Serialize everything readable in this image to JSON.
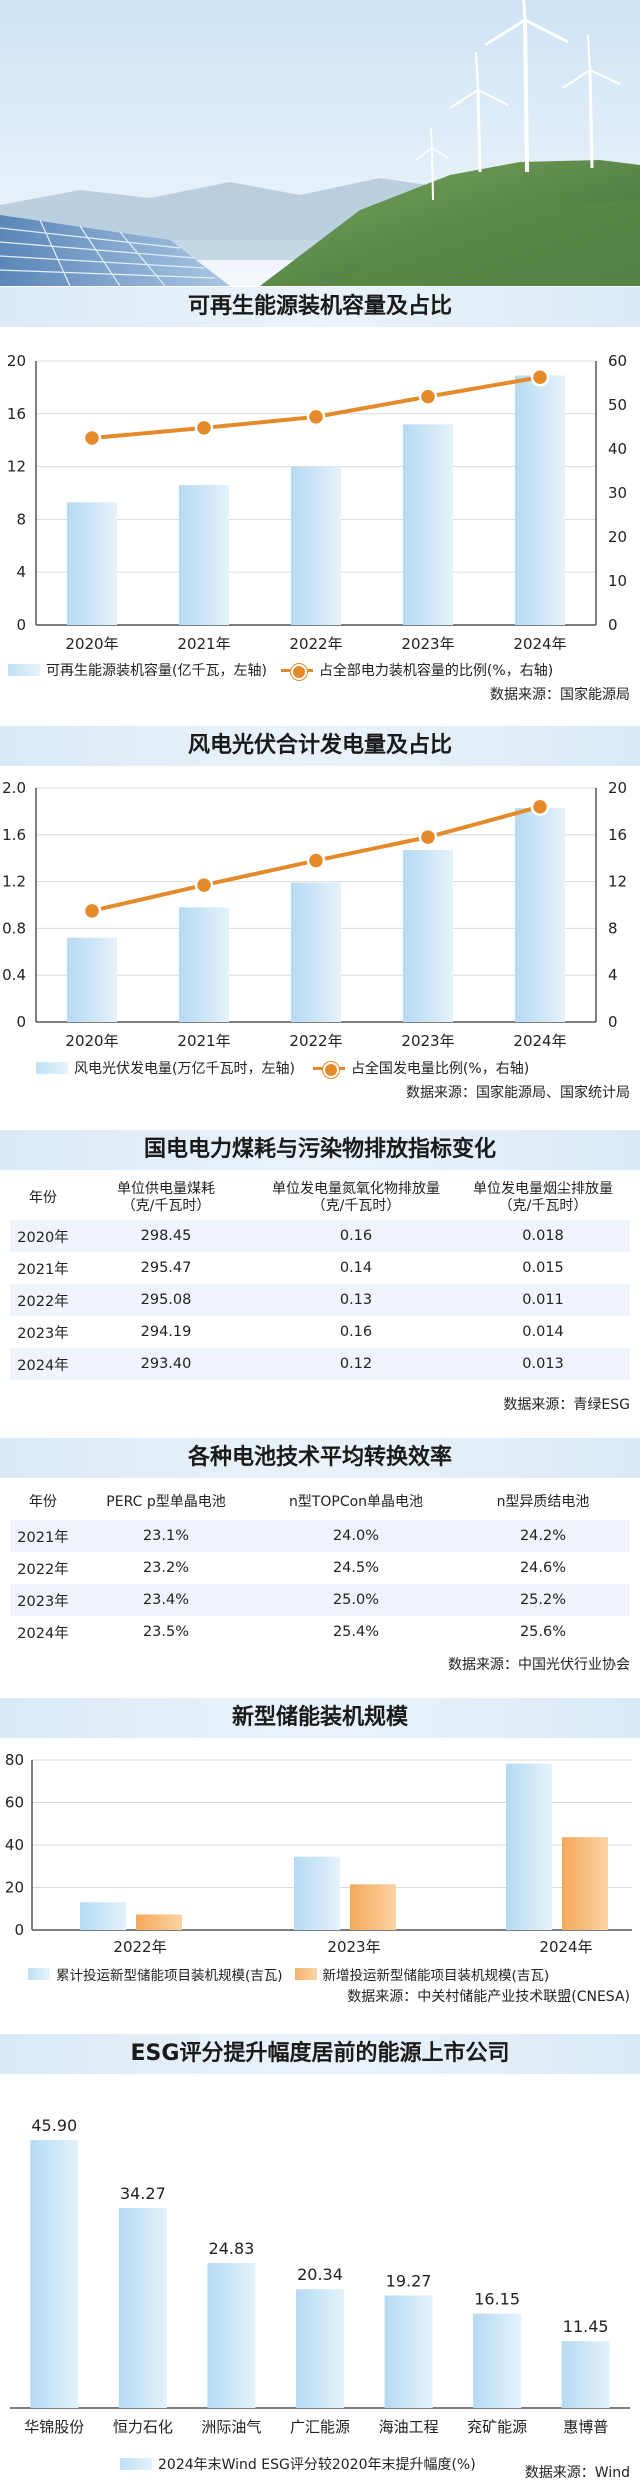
{
  "charts": {
    "c1": {
      "title": "可再生能源装机容量及占比",
      "legend_bar": "可再生能源装机容量(亿千瓦，左轴)",
      "legend_line": "占全部电力装机容量的比例(%，右轴)",
      "source": "数据来源：国家能源局",
      "left_ticks": [
        "0",
        "4",
        "8",
        "12",
        "16",
        "20"
      ],
      "right_ticks": [
        "0",
        "10",
        "20",
        "30",
        "40",
        "50",
        "60"
      ]
    },
    "c2": {
      "title": "风电光伏合计发电量及占比",
      "legend_bar": "风电光伏发电量(万亿千瓦时，左轴)",
      "legend_line": "占全国发电量比例(%，右轴)",
      "source": "数据来源：国家能源局、国家统计局",
      "left_ticks": [
        "0",
        "0.4",
        "0.8",
        "1.2",
        "1.6",
        "2.0"
      ],
      "right_ticks": [
        "0",
        "4",
        "8",
        "12",
        "16",
        "20"
      ]
    },
    "t1": {
      "title": "国电电力煤耗与污染物排放指标变化",
      "source": "数据来源：青绿ESG"
    },
    "t2": {
      "title": "各种电池技术平均转换效率",
      "source": "数据来源：中国光伏行业协会"
    },
    "c3": {
      "title": "新型储能装机规模",
      "legend_a": "累计投运新型储能项目装机规模(吉瓦)",
      "legend_b": "新增投运新型储能项目装机规模(吉瓦)",
      "source": "数据来源：中关村储能产业技术联盟(CNESA)",
      "ticks": [
        "0",
        "20",
        "40",
        "60",
        "80"
      ]
    },
    "c4": {
      "title": "ESG评分提升幅度居前的能源上市公司",
      "legend": "2024年末Wind ESG评分较2020年末提升幅度(%)",
      "source": "数据来源：Wind"
    }
  },
  "chart_data": [
    {
      "type": "bar",
      "title": "可再生能源装机容量及占比",
      "categories": [
        "2020年",
        "2021年",
        "2022年",
        "2023年",
        "2024年"
      ],
      "series": [
        {
          "name": "可再生能源装机容量(亿千瓦，左轴)",
          "type": "bar",
          "axis": "left",
          "values": [
            9.3,
            10.6,
            12.0,
            15.2,
            18.9
          ]
        },
        {
          "name": "占全部电力装机容量的比例(%，右轴)",
          "type": "line",
          "axis": "right",
          "values": [
            42.5,
            44.8,
            47.3,
            51.9,
            56.3
          ]
        }
      ],
      "ylim_left": [
        0,
        20
      ],
      "ylim_right": [
        0,
        60
      ]
    },
    {
      "type": "bar",
      "title": "风电光伏合计发电量及占比",
      "categories": [
        "2020年",
        "2021年",
        "2022年",
        "2023年",
        "2024年"
      ],
      "series": [
        {
          "name": "风电光伏发电量(万亿千瓦时，左轴)",
          "type": "bar",
          "axis": "left",
          "values": [
            0.72,
            0.98,
            1.19,
            1.47,
            1.83
          ]
        },
        {
          "name": "占全国发电量比例(%，右轴)",
          "type": "line",
          "axis": "right",
          "values": [
            9.5,
            11.7,
            13.8,
            15.8,
            18.4
          ]
        }
      ],
      "ylim_left": [
        0,
        2.0
      ],
      "ylim_right": [
        0,
        20
      ]
    },
    {
      "type": "table",
      "title": "国电电力煤耗与污染物排放指标变化",
      "columns": [
        "年份",
        "单位供电量煤耗\n（克/千瓦时）",
        "单位发电量氮氧化物排放量\n（克/千瓦时）",
        "单位发电量烟尘排放量\n（克/千瓦时）"
      ],
      "rows": [
        [
          "2020年",
          "298.45",
          "0.16",
          "0.018"
        ],
        [
          "2021年",
          "295.47",
          "0.14",
          "0.015"
        ],
        [
          "2022年",
          "295.08",
          "0.13",
          "0.011"
        ],
        [
          "2023年",
          "294.19",
          "0.16",
          "0.014"
        ],
        [
          "2024年",
          "293.40",
          "0.12",
          "0.013"
        ]
      ]
    },
    {
      "type": "table",
      "title": "各种电池技术平均转换效率",
      "columns": [
        "年份",
        "PERC p型单晶电池",
        "n型TOPCon单晶电池",
        "n型异质结电池"
      ],
      "rows": [
        [
          "2021年",
          "23.1%",
          "24.0%",
          "24.2%"
        ],
        [
          "2022年",
          "23.2%",
          "24.5%",
          "24.6%"
        ],
        [
          "2023年",
          "23.4%",
          "25.0%",
          "25.2%"
        ],
        [
          "2024年",
          "23.5%",
          "25.4%",
          "25.6%"
        ]
      ]
    },
    {
      "type": "bar",
      "title": "新型储能装机规模",
      "categories": [
        "2022年",
        "2023年",
        "2024年"
      ],
      "series": [
        {
          "name": "累计投运新型储能项目装机规模(吉瓦)",
          "values": [
            13.1,
            34.5,
            78.3
          ]
        },
        {
          "name": "新增投运新型储能项目装机规模(吉瓦)",
          "values": [
            7.3,
            21.5,
            43.7
          ]
        }
      ],
      "ylim": [
        0,
        80
      ]
    },
    {
      "type": "bar",
      "title": "ESG评分提升幅度居前的能源上市公司",
      "categories": [
        "华锦股份",
        "恒力石化",
        "洲际油气",
        "广汇能源",
        "海油工程",
        "兖矿能源",
        "惠博普"
      ],
      "series": [
        {
          "name": "2024年末Wind ESG评分较2020年末提升幅度(%)",
          "values": [
            45.9,
            34.27,
            24.83,
            20.34,
            19.27,
            16.15,
            11.45
          ],
          "labels": [
            "45.90",
            "34.27",
            "24.83",
            "20.34",
            "19.27",
            "16.15",
            "11.45"
          ]
        }
      ]
    }
  ]
}
